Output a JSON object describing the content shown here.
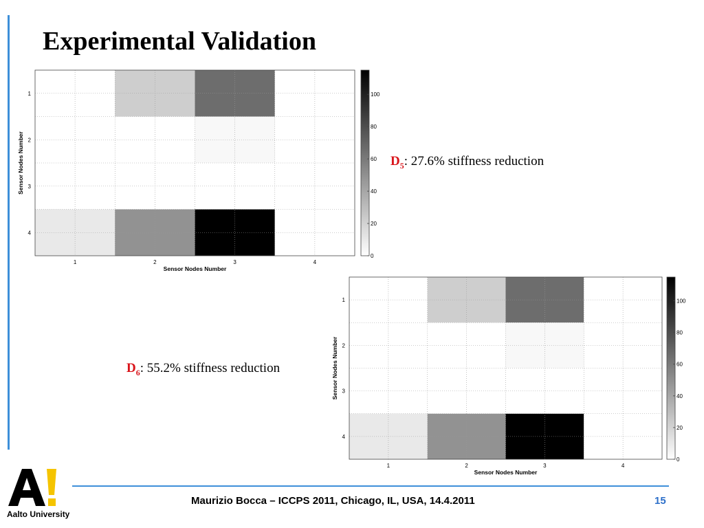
{
  "slide": {
    "title": "Experimental Validation",
    "footer": "Maurizio Bocca – ICCPS 2011, Chicago, IL, USA, 14.4.2011",
    "page_number": "15",
    "logo_text": "Aalto University",
    "colors": {
      "accent": "#3d8fd9",
      "highlight": "#d9141a",
      "page_number": "#2d6fc9"
    }
  },
  "annotations": [
    {
      "label": "D",
      "sub": "5",
      "text": ": 27.6% stiffness reduction"
    },
    {
      "label": "D",
      "sub": "6",
      "text": ": 55.2% stiffness reduction"
    }
  ],
  "chart_data": [
    {
      "type": "heatmap",
      "xlabel": "Sensor Nodes Number",
      "ylabel": "Sensor Nodes Number",
      "x_ticks": [
        "1",
        "2",
        "3",
        "4"
      ],
      "y_ticks": [
        "1",
        "2",
        "3",
        "4"
      ],
      "values": [
        [
          0,
          22,
          66,
          0
        ],
        [
          0,
          0,
          3,
          0
        ],
        [
          0,
          0,
          0,
          0
        ],
        [
          10,
          49,
          115,
          0
        ]
      ],
      "colorbar": {
        "min": 0,
        "max": 115,
        "ticks": [
          "0",
          "20",
          "40",
          "60",
          "80",
          "100"
        ],
        "colormap": "gray-reversed"
      },
      "grid": true
    },
    {
      "type": "heatmap",
      "xlabel": "Sensor Nodes Number",
      "ylabel": "Sensor Nodes Number",
      "x_ticks": [
        "1",
        "2",
        "3",
        "4"
      ],
      "y_ticks": [
        "1",
        "2",
        "3",
        "4"
      ],
      "values": [
        [
          0,
          22,
          66,
          0
        ],
        [
          0,
          0,
          3,
          0
        ],
        [
          0,
          0,
          0,
          0
        ],
        [
          10,
          49,
          115,
          0
        ]
      ],
      "colorbar": {
        "min": 0,
        "max": 115,
        "ticks": [
          "0",
          "20",
          "40",
          "60",
          "80",
          "100"
        ],
        "colormap": "gray-reversed"
      },
      "grid": true
    }
  ]
}
